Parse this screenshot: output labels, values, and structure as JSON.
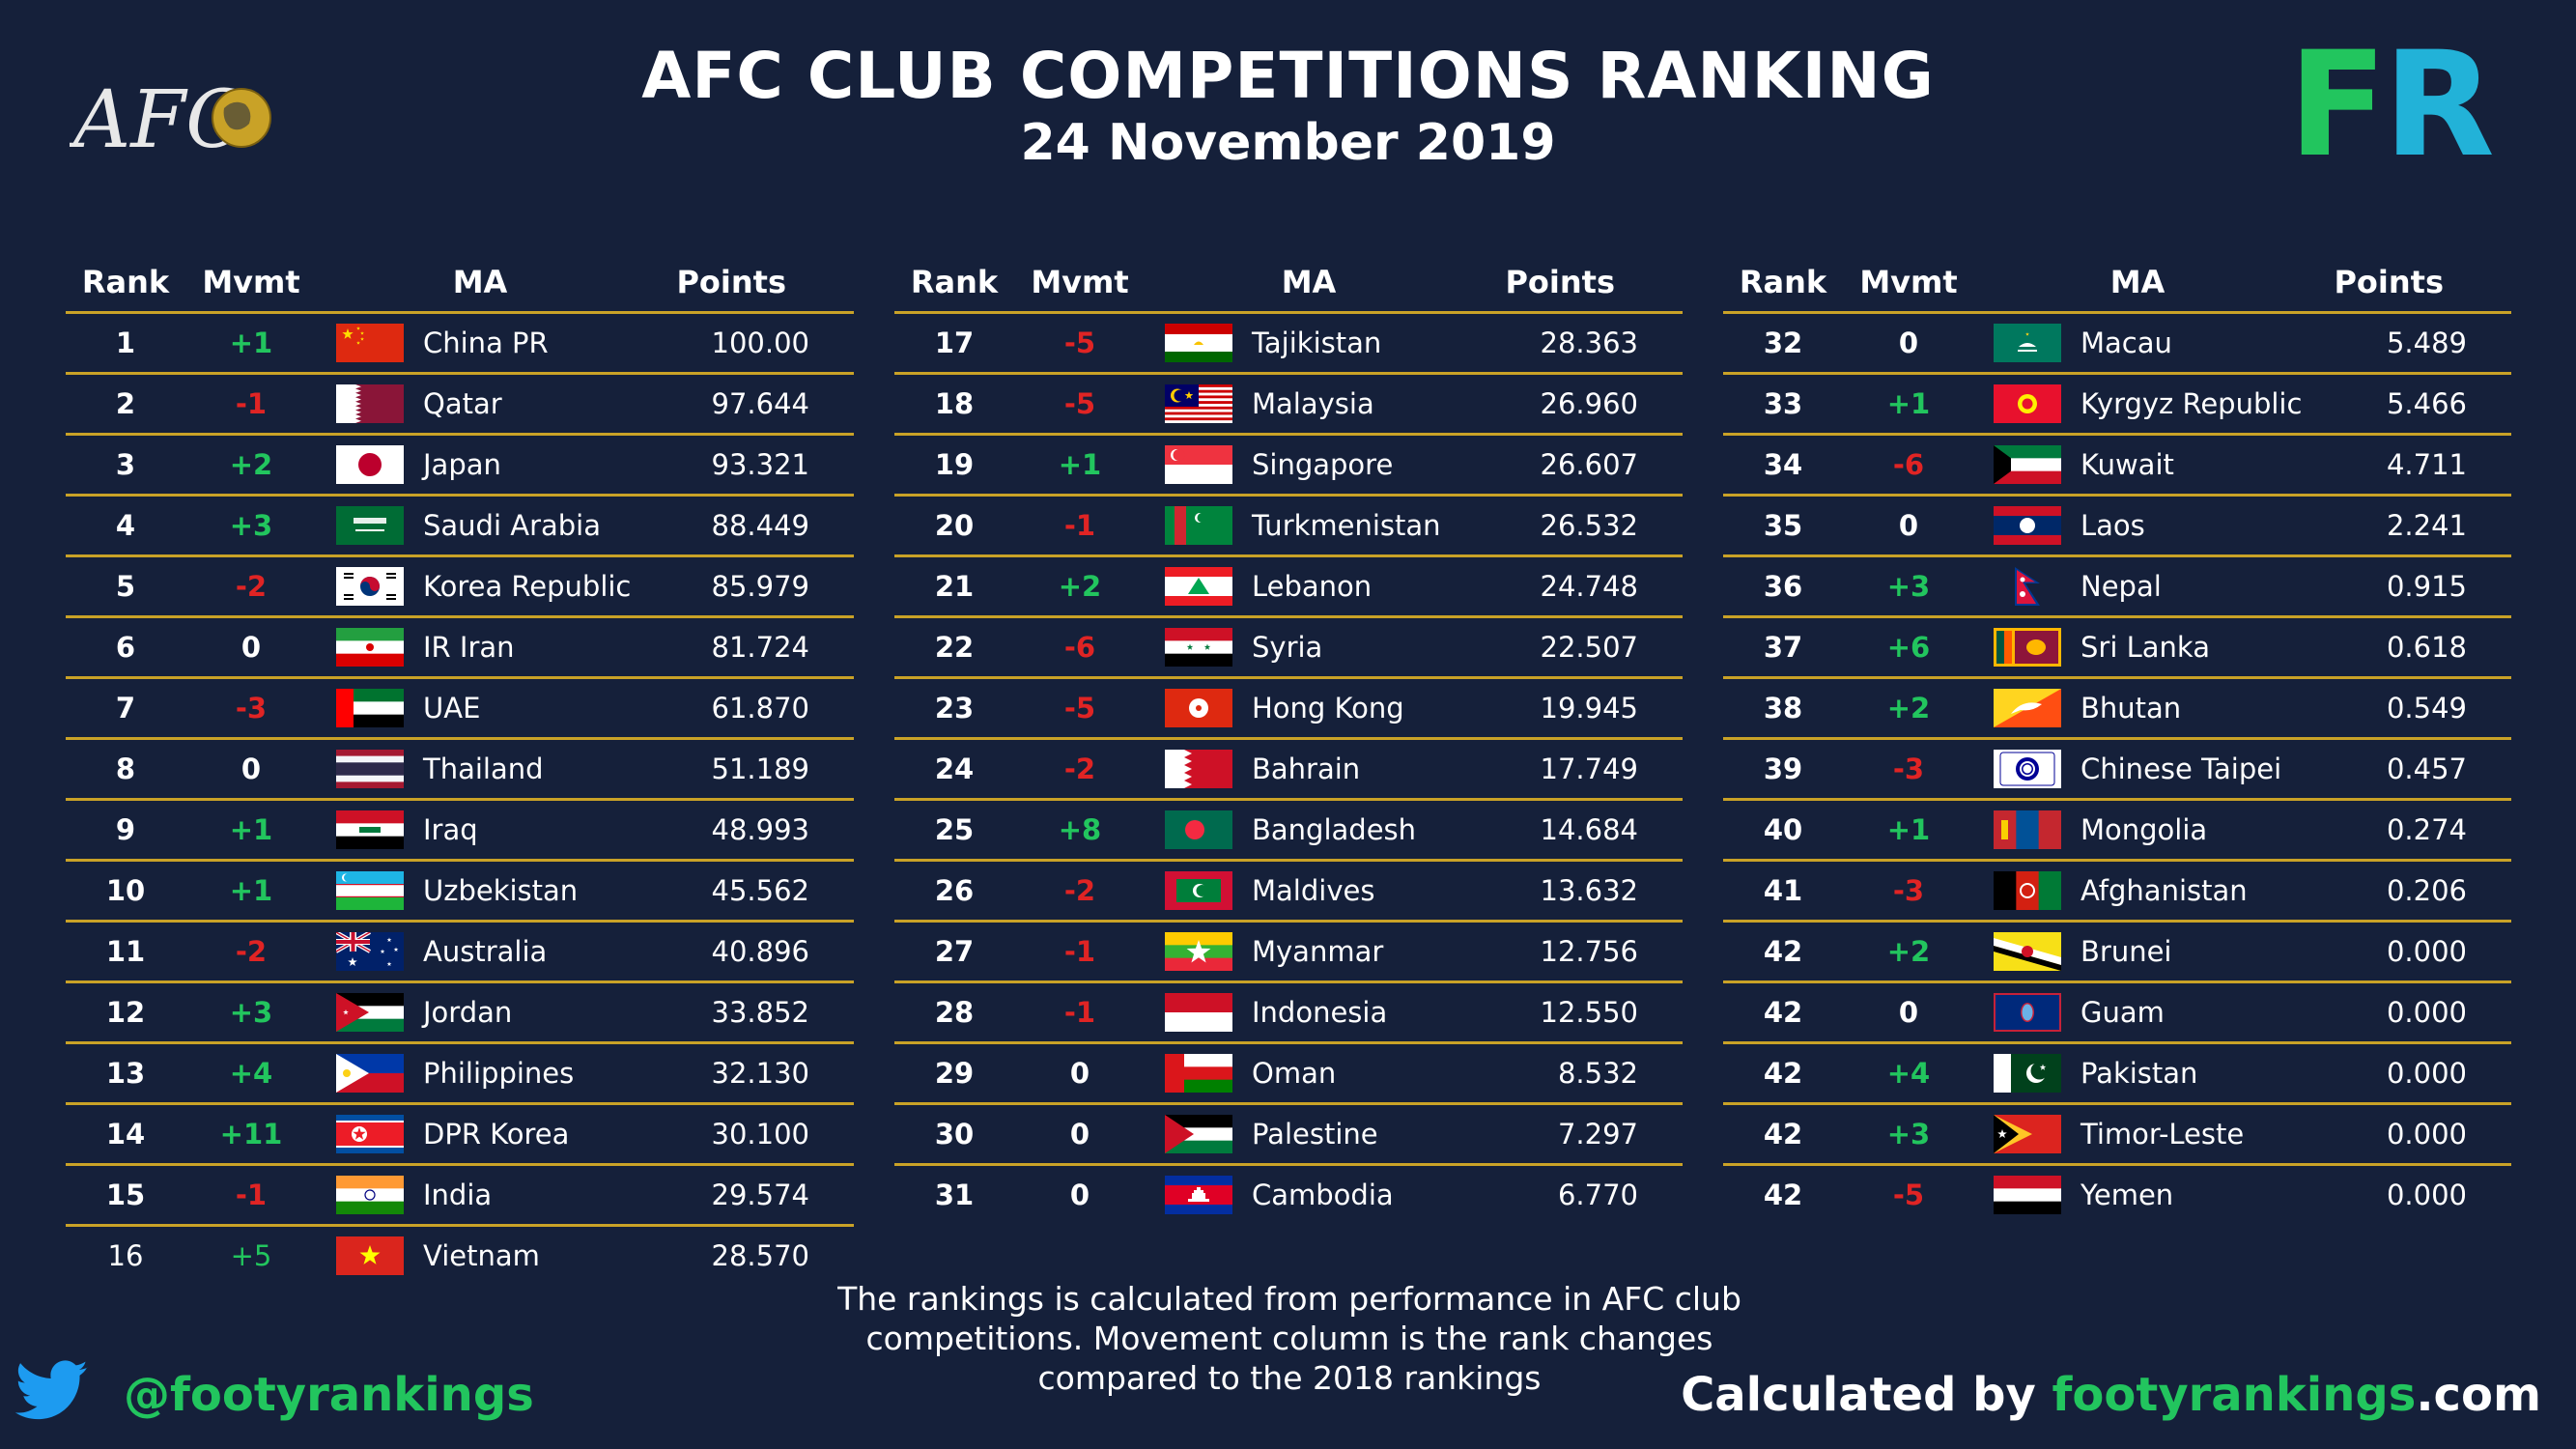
{
  "header": {
    "title": "AFC CLUB COMPETITIONS RANKING",
    "subtitle": "24 November 2019",
    "afc_logo_text": "AFC",
    "fr_logo": {
      "f": "F",
      "r": "R"
    }
  },
  "columns": {
    "rank": "Rank",
    "mvmt": "Mvmt",
    "ma": "MA",
    "points": "Points"
  },
  "colors": {
    "up": "#22c55e",
    "down": "#e02424",
    "rule": "#c9a227",
    "background": "#15203a"
  },
  "tables": [
    [
      {
        "rank": "1",
        "mvmt": "+1",
        "ma": "China PR",
        "points": "100.00",
        "flag": "cn"
      },
      {
        "rank": "2",
        "mvmt": "-1",
        "ma": "Qatar",
        "points": "97.644",
        "flag": "qa"
      },
      {
        "rank": "3",
        "mvmt": "+2",
        "ma": "Japan",
        "points": "93.321",
        "flag": "jp"
      },
      {
        "rank": "4",
        "mvmt": "+3",
        "ma": "Saudi Arabia",
        "points": "88.449",
        "flag": "sa"
      },
      {
        "rank": "5",
        "mvmt": "-2",
        "ma": "Korea Republic",
        "points": "85.979",
        "flag": "kr"
      },
      {
        "rank": "6",
        "mvmt": "0",
        "ma": "IR Iran",
        "points": "81.724",
        "flag": "ir"
      },
      {
        "rank": "7",
        "mvmt": "-3",
        "ma": "UAE",
        "points": "61.870",
        "flag": "ae"
      },
      {
        "rank": "8",
        "mvmt": "0",
        "ma": "Thailand",
        "points": "51.189",
        "flag": "th"
      },
      {
        "rank": "9",
        "mvmt": "+1",
        "ma": "Iraq",
        "points": "48.993",
        "flag": "iq"
      },
      {
        "rank": "10",
        "mvmt": "+1",
        "ma": "Uzbekistan",
        "points": "45.562",
        "flag": "uz"
      },
      {
        "rank": "11",
        "mvmt": "-2",
        "ma": "Australia",
        "points": "40.896",
        "flag": "au"
      },
      {
        "rank": "12",
        "mvmt": "+3",
        "ma": "Jordan",
        "points": "33.852",
        "flag": "jo"
      },
      {
        "rank": "13",
        "mvmt": "+4",
        "ma": "Philippines",
        "points": "32.130",
        "flag": "ph"
      },
      {
        "rank": "14",
        "mvmt": "+11",
        "ma": "DPR Korea",
        "points": "30.100",
        "flag": "kp"
      },
      {
        "rank": "15",
        "mvmt": "-1",
        "ma": "India",
        "points": "29.574",
        "flag": "in"
      },
      {
        "rank": "16",
        "mvmt": "+5",
        "ma": "Vietnam",
        "points": "28.570",
        "flag": "vn"
      }
    ],
    [
      {
        "rank": "17",
        "mvmt": "-5",
        "ma": "Tajikistan",
        "points": "28.363",
        "flag": "tj"
      },
      {
        "rank": "18",
        "mvmt": "-5",
        "ma": "Malaysia",
        "points": "26.960",
        "flag": "my"
      },
      {
        "rank": "19",
        "mvmt": "+1",
        "ma": "Singapore",
        "points": "26.607",
        "flag": "sg"
      },
      {
        "rank": "20",
        "mvmt": "-1",
        "ma": "Turkmenistan",
        "points": "26.532",
        "flag": "tm"
      },
      {
        "rank": "21",
        "mvmt": "+2",
        "ma": "Lebanon",
        "points": "24.748",
        "flag": "lb"
      },
      {
        "rank": "22",
        "mvmt": "-6",
        "ma": "Syria",
        "points": "22.507",
        "flag": "sy"
      },
      {
        "rank": "23",
        "mvmt": "-5",
        "ma": "Hong Kong",
        "points": "19.945",
        "flag": "hk"
      },
      {
        "rank": "24",
        "mvmt": "-2",
        "ma": "Bahrain",
        "points": "17.749",
        "flag": "bh"
      },
      {
        "rank": "25",
        "mvmt": "+8",
        "ma": "Bangladesh",
        "points": "14.684",
        "flag": "bd"
      },
      {
        "rank": "26",
        "mvmt": "-2",
        "ma": "Maldives",
        "points": "13.632",
        "flag": "mv"
      },
      {
        "rank": "27",
        "mvmt": "-1",
        "ma": "Myanmar",
        "points": "12.756",
        "flag": "mm"
      },
      {
        "rank": "28",
        "mvmt": "-1",
        "ma": "Indonesia",
        "points": "12.550",
        "flag": "id"
      },
      {
        "rank": "29",
        "mvmt": "0",
        "ma": "Oman",
        "points": "8.532",
        "flag": "om"
      },
      {
        "rank": "30",
        "mvmt": "0",
        "ma": "Palestine",
        "points": "7.297",
        "flag": "ps"
      },
      {
        "rank": "31",
        "mvmt": "0",
        "ma": "Cambodia",
        "points": "6.770",
        "flag": "kh"
      }
    ],
    [
      {
        "rank": "32",
        "mvmt": "0",
        "ma": "Macau",
        "points": "5.489",
        "flag": "mo"
      },
      {
        "rank": "33",
        "mvmt": "+1",
        "ma": "Kyrgyz Republic",
        "points": "5.466",
        "flag": "kg"
      },
      {
        "rank": "34",
        "mvmt": "-6",
        "ma": "Kuwait",
        "points": "4.711",
        "flag": "kw"
      },
      {
        "rank": "35",
        "mvmt": "0",
        "ma": "Laos",
        "points": "2.241",
        "flag": "la"
      },
      {
        "rank": "36",
        "mvmt": "+3",
        "ma": "Nepal",
        "points": "0.915",
        "flag": "np"
      },
      {
        "rank": "37",
        "mvmt": "+6",
        "ma": "Sri Lanka",
        "points": "0.618",
        "flag": "lk"
      },
      {
        "rank": "38",
        "mvmt": "+2",
        "ma": "Bhutan",
        "points": "0.549",
        "flag": "bt"
      },
      {
        "rank": "39",
        "mvmt": "-3",
        "ma": "Chinese Taipei",
        "points": "0.457",
        "flag": "tw"
      },
      {
        "rank": "40",
        "mvmt": "+1",
        "ma": "Mongolia",
        "points": "0.274",
        "flag": "mn"
      },
      {
        "rank": "41",
        "mvmt": "-3",
        "ma": "Afghanistan",
        "points": "0.206",
        "flag": "af"
      },
      {
        "rank": "42",
        "mvmt": "+2",
        "ma": "Brunei",
        "points": "0.000",
        "flag": "bn"
      },
      {
        "rank": "42",
        "mvmt": "0",
        "ma": "Guam",
        "points": "0.000",
        "flag": "gu"
      },
      {
        "rank": "42",
        "mvmt": "+4",
        "ma": "Pakistan",
        "points": "0.000",
        "flag": "pk"
      },
      {
        "rank": "42",
        "mvmt": "+3",
        "ma": "Timor-Leste",
        "points": "0.000",
        "flag": "tl"
      },
      {
        "rank": "42",
        "mvmt": "-5",
        "ma": "Yemen",
        "points": "0.000",
        "flag": "ye"
      }
    ]
  ],
  "footer": {
    "footnote": [
      "The rankings is calculated from performance in AFC club",
      "competitions. Movement column is the rank changes",
      "compared to the 2018 rankings"
    ],
    "handle": "@footyrankings",
    "calc_prefix": "Calculated by ",
    "calc_site": "footyrankings",
    "calc_suffix": ".com",
    "twitter_icon": "twitter-bird-icon"
  }
}
